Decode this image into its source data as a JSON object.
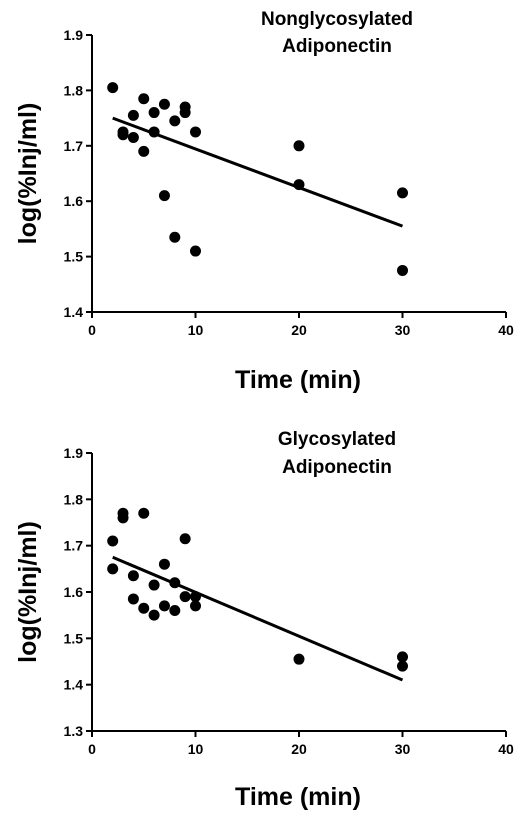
{
  "chart_data": [
    {
      "type": "scatter",
      "title": [
        "Nonglycosylated",
        "Adiponectin"
      ],
      "xlabel": "Time (min)",
      "ylabel": "log(%Inj/ml)",
      "xlim": [
        0,
        40
      ],
      "ylim": [
        1.4,
        1.9
      ],
      "xticks": [
        "0",
        "10",
        "20",
        "30",
        "40"
      ],
      "yticks": [
        "1.4",
        "1.5",
        "1.6",
        "1.7",
        "1.8",
        "1.9"
      ],
      "grid": false,
      "points": [
        [
          2,
          1.805
        ],
        [
          3,
          1.72
        ],
        [
          3,
          1.725
        ],
        [
          4,
          1.715
        ],
        [
          4,
          1.755
        ],
        [
          5,
          1.785
        ],
        [
          5,
          1.69
        ],
        [
          6,
          1.76
        ],
        [
          6,
          1.725
        ],
        [
          7,
          1.775
        ],
        [
          7,
          1.61
        ],
        [
          8,
          1.745
        ],
        [
          8,
          1.535
        ],
        [
          9,
          1.77
        ],
        [
          9,
          1.76
        ],
        [
          10,
          1.725
        ],
        [
          10,
          1.51
        ],
        [
          20,
          1.7
        ],
        [
          20,
          1.63
        ],
        [
          30,
          1.615
        ],
        [
          30,
          1.475
        ]
      ],
      "fit_line": {
        "x": [
          2,
          30
        ],
        "y": [
          1.75,
          1.555
        ]
      }
    },
    {
      "type": "scatter",
      "title": [
        "Glycosylated",
        "Adiponectin"
      ],
      "xlabel": "Time (min)",
      "ylabel": "log(%Inj/ml)",
      "xlim": [
        0,
        40
      ],
      "ylim": [
        1.3,
        1.9
      ],
      "xticks": [
        "0",
        "10",
        "20",
        "30",
        "40"
      ],
      "yticks": [
        "1.3",
        "1.4",
        "1.5",
        "1.6",
        "1.7",
        "1.8",
        "1.9"
      ],
      "grid": false,
      "points": [
        [
          2,
          1.71
        ],
        [
          2,
          1.65
        ],
        [
          3,
          1.77
        ],
        [
          3,
          1.76
        ],
        [
          4,
          1.635
        ],
        [
          4,
          1.585
        ],
        [
          5,
          1.77
        ],
        [
          5,
          1.565
        ],
        [
          6,
          1.615
        ],
        [
          6,
          1.55
        ],
        [
          7,
          1.66
        ],
        [
          7,
          1.57
        ],
        [
          8,
          1.62
        ],
        [
          8,
          1.56
        ],
        [
          9,
          1.715
        ],
        [
          9,
          1.59
        ],
        [
          10,
          1.59
        ],
        [
          10,
          1.57
        ],
        [
          20,
          1.455
        ],
        [
          30,
          1.46
        ],
        [
          30,
          1.44
        ]
      ],
      "fit_line": {
        "x": [
          2,
          30
        ],
        "y": [
          1.675,
          1.41
        ]
      }
    }
  ]
}
